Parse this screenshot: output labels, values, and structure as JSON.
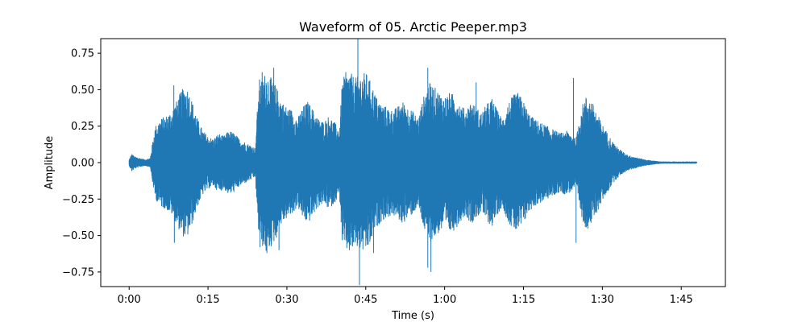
{
  "chart_data": {
    "type": "line",
    "title": "Waveform of 05. Arctic Peeper.mp3",
    "xlabel": "Time (s)",
    "ylabel": "Amplitude",
    "xlim": [
      -5.4,
      113.4
    ],
    "ylim": [
      -0.85,
      0.85
    ],
    "x_ticks": [
      {
        "value": 0,
        "label": "0:00"
      },
      {
        "value": 15,
        "label": "0:15"
      },
      {
        "value": 30,
        "label": "0:30"
      },
      {
        "value": 45,
        "label": "0:45"
      },
      {
        "value": 60,
        "label": "1:00"
      },
      {
        "value": 75,
        "label": "1:15"
      },
      {
        "value": 90,
        "label": "1:30"
      },
      {
        "value": 105,
        "label": "1:45"
      }
    ],
    "y_ticks": [
      {
        "value": 0.75,
        "label": "0.75"
      },
      {
        "value": 0.5,
        "label": "0.50"
      },
      {
        "value": 0.25,
        "label": "0.25"
      },
      {
        "value": 0,
        "label": "0.00"
      },
      {
        "value": -0.25,
        "label": "−0.25"
      },
      {
        "value": -0.5,
        "label": "−0.50"
      },
      {
        "value": -0.75,
        "label": "−0.75"
      }
    ],
    "grid": false,
    "series": [
      {
        "color": "#1f77b4",
        "envelope": {
          "t": [
            0,
            0.5,
            1,
            2,
            3,
            4,
            4.5,
            5,
            6,
            7,
            8,
            9,
            10,
            11,
            12,
            13,
            14,
            15,
            16,
            17,
            18,
            19,
            20,
            21,
            22,
            23,
            24,
            24.5,
            25,
            26,
            27,
            28,
            29,
            30,
            31,
            32,
            33,
            34,
            35,
            36,
            37,
            38,
            39,
            40,
            40.5,
            41,
            42,
            43,
            44,
            45,
            46,
            47,
            48,
            49,
            50,
            51,
            52,
            53,
            54,
            55,
            56,
            57,
            58,
            59,
            60,
            61,
            62,
            63,
            64,
            65,
            66,
            67,
            68,
            69,
            70,
            71,
            72,
            73,
            74,
            75,
            76,
            77,
            78,
            79,
            80,
            81,
            82,
            83,
            84,
            85,
            86,
            87,
            88,
            89,
            90,
            91,
            92,
            93,
            94,
            95,
            96,
            97,
            98,
            99,
            100,
            101,
            102,
            103,
            104,
            105,
            106,
            107,
            108
          ],
          "amp": [
            0.02,
            0.06,
            0.04,
            0.03,
            0.02,
            0.03,
            0.15,
            0.25,
            0.3,
            0.32,
            0.35,
            0.42,
            0.5,
            0.52,
            0.42,
            0.3,
            0.22,
            0.18,
            0.16,
            0.2,
            0.18,
            0.22,
            0.2,
            0.16,
            0.14,
            0.12,
            0.1,
            0.45,
            0.55,
            0.62,
            0.58,
            0.52,
            0.42,
            0.38,
            0.36,
            0.3,
            0.38,
            0.42,
            0.36,
            0.3,
            0.28,
            0.32,
            0.28,
            0.22,
            0.55,
            0.6,
            0.62,
            0.58,
            0.6,
            0.62,
            0.55,
            0.45,
            0.4,
            0.38,
            0.36,
            0.38,
            0.42,
            0.38,
            0.35,
            0.3,
            0.45,
            0.55,
            0.52,
            0.48,
            0.45,
            0.48,
            0.46,
            0.4,
            0.36,
            0.42,
            0.38,
            0.34,
            0.4,
            0.44,
            0.36,
            0.3,
            0.4,
            0.46,
            0.48,
            0.42,
            0.34,
            0.3,
            0.28,
            0.26,
            0.24,
            0.22,
            0.2,
            0.22,
            0.2,
            0.16,
            0.38,
            0.46,
            0.42,
            0.34,
            0.26,
            0.2,
            0.14,
            0.1,
            0.07,
            0.05,
            0.04,
            0.03,
            0.02,
            0.015,
            0.01,
            0.006,
            0.005,
            0.005,
            0.005,
            0.005,
            0.005,
            0.005,
            0.005
          ]
        },
        "peaks": [
          {
            "t": 8.5,
            "v": 0.53
          },
          {
            "t": 8.6,
            "v": -0.55
          },
          {
            "t": 24.8,
            "v": 0.57
          },
          {
            "t": 24.9,
            "v": -0.58
          },
          {
            "t": 25.3,
            "v": 0.62
          },
          {
            "t": 26.2,
            "v": -0.62
          },
          {
            "t": 27.5,
            "v": 0.65
          },
          {
            "t": 28.5,
            "v": -0.6
          },
          {
            "t": 43.5,
            "v": 0.85
          },
          {
            "t": 43.8,
            "v": -0.84
          },
          {
            "t": 41.2,
            "v": 0.62
          },
          {
            "t": 46.5,
            "v": -0.62
          },
          {
            "t": 56.8,
            "v": 0.65
          },
          {
            "t": 56.8,
            "v": -0.72
          },
          {
            "t": 57.4,
            "v": -0.75
          },
          {
            "t": 84.5,
            "v": 0.58
          },
          {
            "t": 85.0,
            "v": -0.55
          },
          {
            "t": 66.0,
            "v": 0.55
          }
        ]
      }
    ]
  }
}
